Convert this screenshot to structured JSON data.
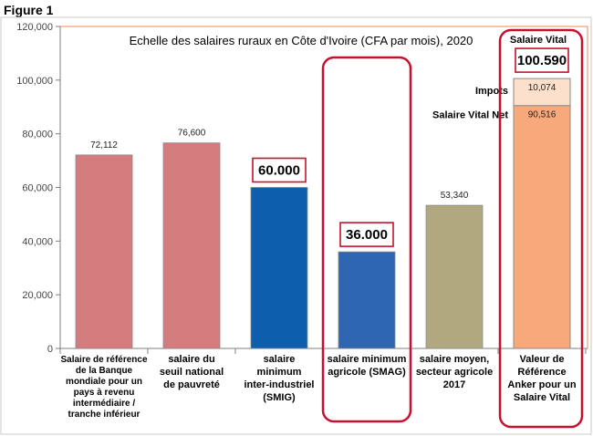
{
  "figure_label": "Figure 1",
  "chart_data": {
    "type": "bar",
    "title": "Echelle des salaires ruraux en Côte d'Ivoire (CFA par mois), 2020",
    "ylim": [
      0,
      120000
    ],
    "y_ticks": [
      "0",
      "20,000",
      "40,000",
      "60,000",
      "80,000",
      "100,000",
      "120,000"
    ],
    "grid": false,
    "categories": [
      [
        "Salaire de référence",
        "de la Banque",
        "mondiale pour un",
        "pays à revenu",
        "intermédiaire /",
        "tranche inférieur"
      ],
      [
        "salaire du",
        "seuil national",
        "de pauvreté"
      ],
      [
        "salaire",
        "minimum",
        "inter-industriel",
        "(SMIG)"
      ],
      [
        "salaire minimum",
        "agricole (SMAG)"
      ],
      [
        "salaire moyen,",
        "secteur agricole",
        "2017"
      ],
      [
        "Valeur de",
        "Référence",
        "Anker pour un",
        "Salaire Vital"
      ]
    ],
    "values": [
      72112,
      76600,
      60000,
      36000,
      53340,
      100590
    ],
    "data_labels": [
      "72,112",
      "76,600",
      "60.000",
      "36.000",
      "53,340",
      "100.590"
    ],
    "colors": [
      "#d47b7d",
      "#d47b7d",
      "#0d5fae",
      "#2e66b2",
      "#b1a880",
      "#f7a97b"
    ],
    "stack": {
      "bar_index": 5,
      "segments": [
        {
          "name": "Salaire Vital Net",
          "value": 90516,
          "label": "90,516",
          "color": "#f7a97b"
        },
        {
          "name": "Impots",
          "value": 10074,
          "label": "10,074",
          "color": "#fde0cb"
        }
      ],
      "total_name": "Salaire Vital"
    },
    "boxed_values": [
      2,
      3,
      5
    ],
    "highlighted_categories": [
      3,
      5
    ],
    "highlight_color": "#c8102e"
  }
}
